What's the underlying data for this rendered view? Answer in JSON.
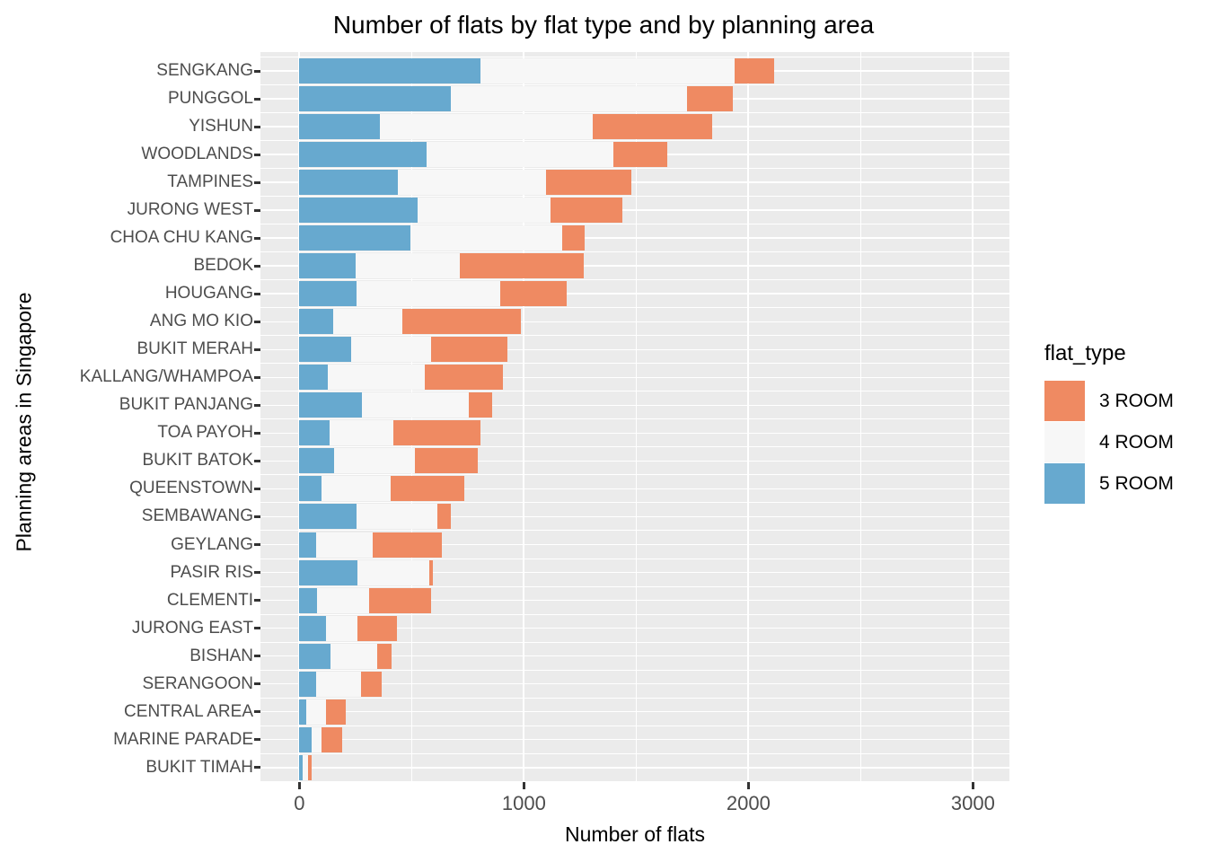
{
  "title": "Number of flats by flat type and by planning area",
  "x_axis": {
    "label": "Number of flats",
    "tick_labels": [
      "0",
      "1000",
      "2000",
      "3000"
    ],
    "tick_values": [
      0,
      1000,
      2000,
      3000
    ]
  },
  "y_axis": {
    "label": "Planning areas in Singapore"
  },
  "legend": {
    "title": "flat_type",
    "entries": [
      {
        "label": "3 ROOM",
        "color": "#EF8A62"
      },
      {
        "label": "4 ROOM",
        "color": "#F7F7F7"
      },
      {
        "label": "5 ROOM",
        "color": "#67A9CF"
      }
    ]
  },
  "colors": {
    "panel_background": "#EBEBEB",
    "gridline": "#FFFFFF",
    "axis_text": "#4D4D4D",
    "tick_mark": "#333333",
    "orange_3_room": "#EF8A62",
    "white_4_room": "#F7F7F7",
    "blue_5_room": "#67A9CF"
  },
  "chart_data": {
    "type": "bar",
    "orientation": "horizontal",
    "stacked": true,
    "title": "Number of flats by flat type and by planning area",
    "xlabel": "Number of flats",
    "ylabel": "Planning areas in Singapore",
    "xlim": [
      0,
      3165
    ],
    "grid": {
      "major_x": [
        0,
        1000,
        2000,
        3000
      ],
      "minor_x": [
        500,
        1500,
        2500
      ]
    },
    "legend_position": "right",
    "categories": [
      "SENGKANG",
      "PUNGGOL",
      "YISHUN",
      "WOODLANDS",
      "TAMPINES",
      "JURONG WEST",
      "CHOA CHU KANG",
      "BEDOK",
      "HOUGANG",
      "ANG MO KIO",
      "BUKIT MERAH",
      "KALLANG/WHAMPOA",
      "BUKIT PANJANG",
      "TOA PAYOH",
      "BUKIT BATOK",
      "QUEENSTOWN",
      "SEMBAWANG",
      "GEYLANG",
      "PASIR RIS",
      "CLEMENTI",
      "JURONG EAST",
      "BISHAN",
      "SERANGOON",
      "CENTRAL AREA",
      "MARINE PARADE",
      "BUKIT TIMAH"
    ],
    "stack_order_from_axis": [
      "5 ROOM",
      "4 ROOM",
      "3 ROOM"
    ],
    "series": [
      {
        "name": "5 ROOM",
        "color": "#67A9CF",
        "values": [
          805,
          675,
          360,
          565,
          440,
          525,
          495,
          250,
          255,
          150,
          230,
          125,
          280,
          135,
          155,
          100,
          255,
          75,
          260,
          80,
          120,
          140,
          75,
          30,
          55,
          15
        ]
      },
      {
        "name": "4 ROOM",
        "color": "#F7F7F7",
        "values": [
          1135,
          1050,
          945,
          835,
          660,
          595,
          675,
          465,
          640,
          310,
          355,
          435,
          475,
          285,
          360,
          305,
          360,
          250,
          320,
          230,
          140,
          205,
          200,
          90,
          45,
          25
        ]
      },
      {
        "name": "3 ROOM",
        "color": "#EF8A62",
        "values": [
          175,
          205,
          535,
          240,
          380,
          320,
          100,
          550,
          295,
          525,
          340,
          345,
          105,
          385,
          280,
          330,
          60,
          310,
          15,
          275,
          175,
          65,
          90,
          85,
          90,
          15
        ]
      }
    ],
    "totals": [
      2115,
      1930,
      1840,
      1640,
      1480,
      1440,
      1270,
      1265,
      1190,
      985,
      925,
      905,
      860,
      805,
      795,
      735,
      675,
      635,
      595,
      585,
      435,
      410,
      365,
      205,
      190,
      55
    ]
  }
}
